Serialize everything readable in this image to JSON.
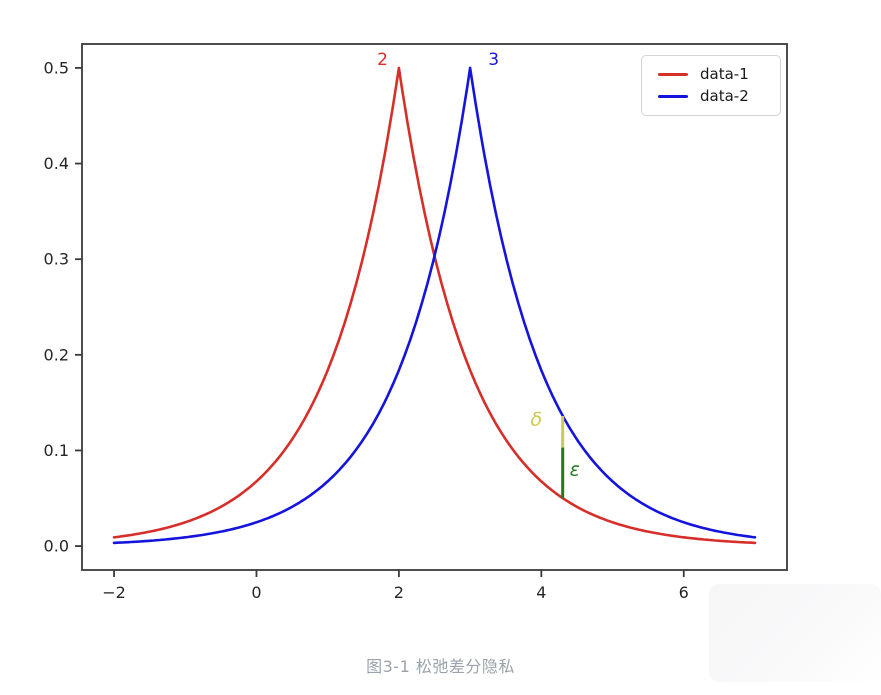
{
  "figure": {
    "caption": "图3-1 松弛差分隐私"
  },
  "chart_data": {
    "type": "line",
    "title": "",
    "xlabel": "",
    "ylabel": "",
    "grid": false,
    "xlim": [
      -2.45,
      7.45
    ],
    "ylim": [
      -0.025,
      0.525
    ],
    "xticks": [
      -2,
      0,
      2,
      4,
      6
    ],
    "yticks": [
      0.0,
      0.1,
      0.2,
      0.3,
      0.4,
      0.5
    ],
    "x_tick_labels": [
      "−2",
      "0",
      "2",
      "4",
      "6"
    ],
    "y_tick_labels": [
      "0.0",
      "0.1",
      "0.2",
      "0.3",
      "0.4",
      "0.5"
    ],
    "series": [
      {
        "name": "data-1",
        "color": "#d62f2a",
        "distribution": "laplace",
        "mu": 2,
        "b": 1,
        "peak": 0.5,
        "x_range": [
          -2,
          7
        ],
        "key_points": [
          [
            -2,
            0.009
          ],
          [
            -1,
            0.025
          ],
          [
            0,
            0.068
          ],
          [
            1,
            0.184
          ],
          [
            2,
            0.5
          ],
          [
            2.5,
            0.303
          ],
          [
            3,
            0.184
          ],
          [
            4,
            0.068
          ],
          [
            4.3,
            0.05
          ],
          [
            5,
            0.025
          ],
          [
            6,
            0.009
          ],
          [
            7,
            0.003
          ]
        ]
      },
      {
        "name": "data-2",
        "color": "#1414dc",
        "distribution": "laplace",
        "mu": 3,
        "b": 1,
        "peak": 0.5,
        "x_range": [
          -2,
          7
        ],
        "key_points": [
          [
            -2,
            0.003
          ],
          [
            -1,
            0.009
          ],
          [
            0,
            0.025
          ],
          [
            1,
            0.068
          ],
          [
            2,
            0.184
          ],
          [
            2.5,
            0.303
          ],
          [
            3,
            0.5
          ],
          [
            4,
            0.184
          ],
          [
            4.3,
            0.136
          ],
          [
            5,
            0.068
          ],
          [
            6,
            0.025
          ],
          [
            7,
            0.009
          ]
        ]
      }
    ],
    "legend": {
      "position": "upper right",
      "entries": [
        "data-1",
        "data-2"
      ]
    },
    "annotations": {
      "peak_labels": [
        {
          "text": "2",
          "color": "#d62f2a",
          "x": 1.77,
          "y": 0.503
        },
        {
          "text": "3",
          "color": "#1414dc",
          "x": 3.33,
          "y": 0.503
        }
      ],
      "privacy_gap": {
        "x": 4.3,
        "y_bottom": 0.05,
        "y_mid": 0.103,
        "y_top": 0.136,
        "upper_color": "#cbcb52",
        "lower_color": "#217a21",
        "delta_label": {
          "text": "δ",
          "color": "#cbcb52",
          "x": 3.93,
          "y": 0.126
        },
        "epsilon_label": {
          "text": "ε",
          "color": "#217a21",
          "x": 4.47,
          "y": 0.074
        }
      }
    },
    "axis_color": "#3a3a3a",
    "tick_label_color": "#262626"
  }
}
